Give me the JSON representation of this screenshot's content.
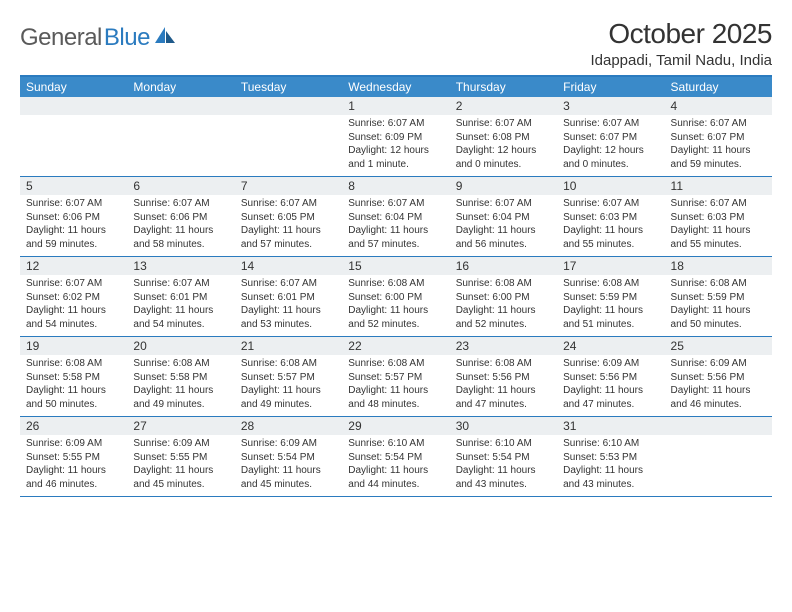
{
  "logo": {
    "gray": "General",
    "blue": "Blue"
  },
  "title": "October 2025",
  "location": "Idappadi, Tamil Nadu, India",
  "colors": {
    "header_bg": "#3a8ac9",
    "border": "#2b7bbf",
    "daynum_bg": "#eceff1",
    "text": "#333333",
    "logo_gray": "#5a5a5a",
    "logo_blue": "#2b7bbf"
  },
  "weekdays": [
    "Sunday",
    "Monday",
    "Tuesday",
    "Wednesday",
    "Thursday",
    "Friday",
    "Saturday"
  ],
  "weeks": [
    [
      null,
      null,
      null,
      {
        "n": "1",
        "sr": "6:07 AM",
        "ss": "6:09 PM",
        "dl": "12 hours and 1 minute."
      },
      {
        "n": "2",
        "sr": "6:07 AM",
        "ss": "6:08 PM",
        "dl": "12 hours and 0 minutes."
      },
      {
        "n": "3",
        "sr": "6:07 AM",
        "ss": "6:07 PM",
        "dl": "12 hours and 0 minutes."
      },
      {
        "n": "4",
        "sr": "6:07 AM",
        "ss": "6:07 PM",
        "dl": "11 hours and 59 minutes."
      }
    ],
    [
      {
        "n": "5",
        "sr": "6:07 AM",
        "ss": "6:06 PM",
        "dl": "11 hours and 59 minutes."
      },
      {
        "n": "6",
        "sr": "6:07 AM",
        "ss": "6:06 PM",
        "dl": "11 hours and 58 minutes."
      },
      {
        "n": "7",
        "sr": "6:07 AM",
        "ss": "6:05 PM",
        "dl": "11 hours and 57 minutes."
      },
      {
        "n": "8",
        "sr": "6:07 AM",
        "ss": "6:04 PM",
        "dl": "11 hours and 57 minutes."
      },
      {
        "n": "9",
        "sr": "6:07 AM",
        "ss": "6:04 PM",
        "dl": "11 hours and 56 minutes."
      },
      {
        "n": "10",
        "sr": "6:07 AM",
        "ss": "6:03 PM",
        "dl": "11 hours and 55 minutes."
      },
      {
        "n": "11",
        "sr": "6:07 AM",
        "ss": "6:03 PM",
        "dl": "11 hours and 55 minutes."
      }
    ],
    [
      {
        "n": "12",
        "sr": "6:07 AM",
        "ss": "6:02 PM",
        "dl": "11 hours and 54 minutes."
      },
      {
        "n": "13",
        "sr": "6:07 AM",
        "ss": "6:01 PM",
        "dl": "11 hours and 54 minutes."
      },
      {
        "n": "14",
        "sr": "6:07 AM",
        "ss": "6:01 PM",
        "dl": "11 hours and 53 minutes."
      },
      {
        "n": "15",
        "sr": "6:08 AM",
        "ss": "6:00 PM",
        "dl": "11 hours and 52 minutes."
      },
      {
        "n": "16",
        "sr": "6:08 AM",
        "ss": "6:00 PM",
        "dl": "11 hours and 52 minutes."
      },
      {
        "n": "17",
        "sr": "6:08 AM",
        "ss": "5:59 PM",
        "dl": "11 hours and 51 minutes."
      },
      {
        "n": "18",
        "sr": "6:08 AM",
        "ss": "5:59 PM",
        "dl": "11 hours and 50 minutes."
      }
    ],
    [
      {
        "n": "19",
        "sr": "6:08 AM",
        "ss": "5:58 PM",
        "dl": "11 hours and 50 minutes."
      },
      {
        "n": "20",
        "sr": "6:08 AM",
        "ss": "5:58 PM",
        "dl": "11 hours and 49 minutes."
      },
      {
        "n": "21",
        "sr": "6:08 AM",
        "ss": "5:57 PM",
        "dl": "11 hours and 49 minutes."
      },
      {
        "n": "22",
        "sr": "6:08 AM",
        "ss": "5:57 PM",
        "dl": "11 hours and 48 minutes."
      },
      {
        "n": "23",
        "sr": "6:08 AM",
        "ss": "5:56 PM",
        "dl": "11 hours and 47 minutes."
      },
      {
        "n": "24",
        "sr": "6:09 AM",
        "ss": "5:56 PM",
        "dl": "11 hours and 47 minutes."
      },
      {
        "n": "25",
        "sr": "6:09 AM",
        "ss": "5:56 PM",
        "dl": "11 hours and 46 minutes."
      }
    ],
    [
      {
        "n": "26",
        "sr": "6:09 AM",
        "ss": "5:55 PM",
        "dl": "11 hours and 46 minutes."
      },
      {
        "n": "27",
        "sr": "6:09 AM",
        "ss": "5:55 PM",
        "dl": "11 hours and 45 minutes."
      },
      {
        "n": "28",
        "sr": "6:09 AM",
        "ss": "5:54 PM",
        "dl": "11 hours and 45 minutes."
      },
      {
        "n": "29",
        "sr": "6:10 AM",
        "ss": "5:54 PM",
        "dl": "11 hours and 44 minutes."
      },
      {
        "n": "30",
        "sr": "6:10 AM",
        "ss": "5:54 PM",
        "dl": "11 hours and 43 minutes."
      },
      {
        "n": "31",
        "sr": "6:10 AM",
        "ss": "5:53 PM",
        "dl": "11 hours and 43 minutes."
      },
      null
    ]
  ],
  "labels": {
    "sunrise": "Sunrise:",
    "sunset": "Sunset:",
    "daylight": "Daylight:"
  }
}
